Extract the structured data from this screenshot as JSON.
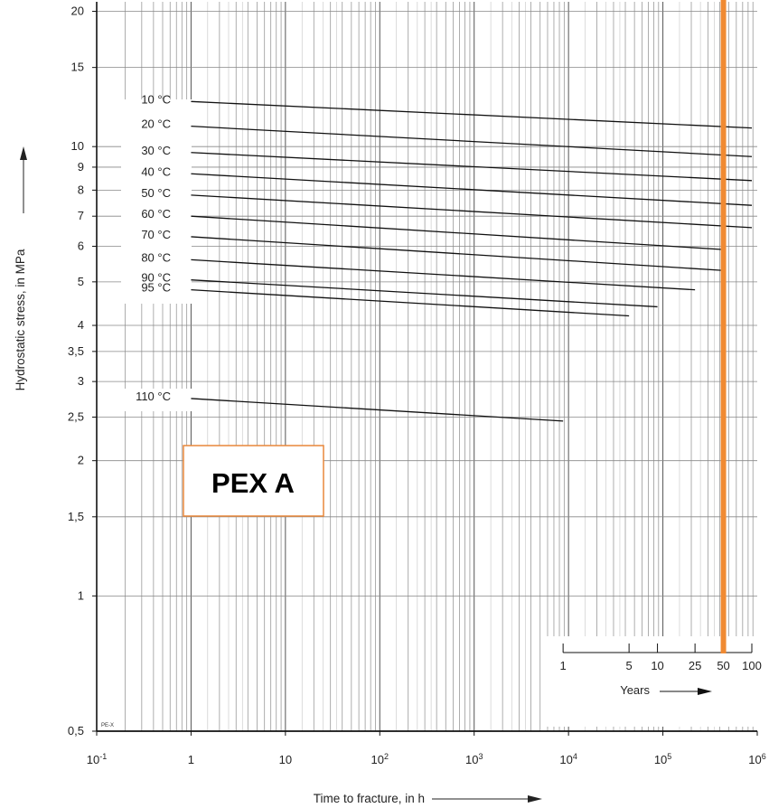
{
  "chart_data": {
    "type": "line",
    "xscale": "log",
    "yscale": "log",
    "xlim": [
      0.1,
      1000000
    ],
    "ylim": [
      0.5,
      21
    ],
    "xlabel": "Time to fracture, in h",
    "ylabel": "Hydrostatic stress, in MPa",
    "x_ticks": [
      {
        "value": 0.1,
        "mant": "10",
        "exp": "-1"
      },
      {
        "value": 1,
        "mant": "1",
        "exp": ""
      },
      {
        "value": 10,
        "mant": "10",
        "exp": ""
      },
      {
        "value": 100,
        "mant": "10",
        "exp": "2"
      },
      {
        "value": 1000,
        "mant": "10",
        "exp": "3"
      },
      {
        "value": 10000,
        "mant": "10",
        "exp": "4"
      },
      {
        "value": 100000,
        "mant": "10",
        "exp": "5"
      },
      {
        "value": 1000000,
        "mant": "10",
        "exp": "6"
      }
    ],
    "y_ticks": [
      {
        "value": 0.5,
        "label": "0,5"
      },
      {
        "value": 1,
        "label": "1"
      },
      {
        "value": 1.5,
        "label": "1,5"
      },
      {
        "value": 2,
        "label": "2"
      },
      {
        "value": 2.5,
        "label": "2,5"
      },
      {
        "value": 3,
        "label": "3"
      },
      {
        "value": 3.5,
        "label": "3,5"
      },
      {
        "value": 4,
        "label": "4"
      },
      {
        "value": 5,
        "label": "5"
      },
      {
        "value": 6,
        "label": "6"
      },
      {
        "value": 7,
        "label": "7"
      },
      {
        "value": 8,
        "label": "8"
      },
      {
        "value": 9,
        "label": "9"
      },
      {
        "value": 10,
        "label": "10"
      },
      {
        "value": 15,
        "label": "15"
      },
      {
        "value": 20,
        "label": "20"
      }
    ],
    "series": [
      {
        "name": "10 °C",
        "x": [
          1,
          876000
        ],
        "y": [
          12.6,
          11.0
        ]
      },
      {
        "name": "20 °C",
        "x": [
          1,
          876000
        ],
        "y": [
          11.1,
          9.5
        ]
      },
      {
        "name": "30 °C",
        "x": [
          1,
          876000
        ],
        "y": [
          9.7,
          8.4
        ]
      },
      {
        "name": "40 °C",
        "x": [
          1,
          876000
        ],
        "y": [
          8.7,
          7.4
        ]
      },
      {
        "name": "50 °C",
        "x": [
          1,
          876000
        ],
        "y": [
          7.8,
          6.6
        ]
      },
      {
        "name": "60 °C",
        "x": [
          1,
          438000
        ],
        "y": [
          7.0,
          5.9
        ]
      },
      {
        "name": "70 °C",
        "x": [
          1,
          438000
        ],
        "y": [
          6.3,
          5.3
        ]
      },
      {
        "name": "80 °C",
        "x": [
          1,
          219000
        ],
        "y": [
          5.6,
          4.8
        ]
      },
      {
        "name": "90 °C",
        "x": [
          1,
          87600
        ],
        "y": [
          5.05,
          4.4
        ]
      },
      {
        "name": "95 °C",
        "x": [
          1,
          43800
        ],
        "y": [
          4.8,
          4.2
        ]
      },
      {
        "name": "110 °C",
        "x": [
          1,
          8760
        ],
        "y": [
          2.75,
          2.45
        ]
      }
    ],
    "years_axis": {
      "label": "Years",
      "ticks": [
        {
          "years": 1,
          "label": "1"
        },
        {
          "years": 5,
          "label": "5"
        },
        {
          "years": 10,
          "label": "10"
        },
        {
          "years": 25,
          "label": "25"
        },
        {
          "years": 50,
          "label": "50"
        },
        {
          "years": 100,
          "label": "100"
        }
      ]
    },
    "highlight": {
      "years": 50,
      "color": "#f08a32"
    },
    "annotations": [
      {
        "text": "PEX A",
        "border_color": "#e8873a"
      },
      {
        "text": "PE-X"
      }
    ]
  }
}
